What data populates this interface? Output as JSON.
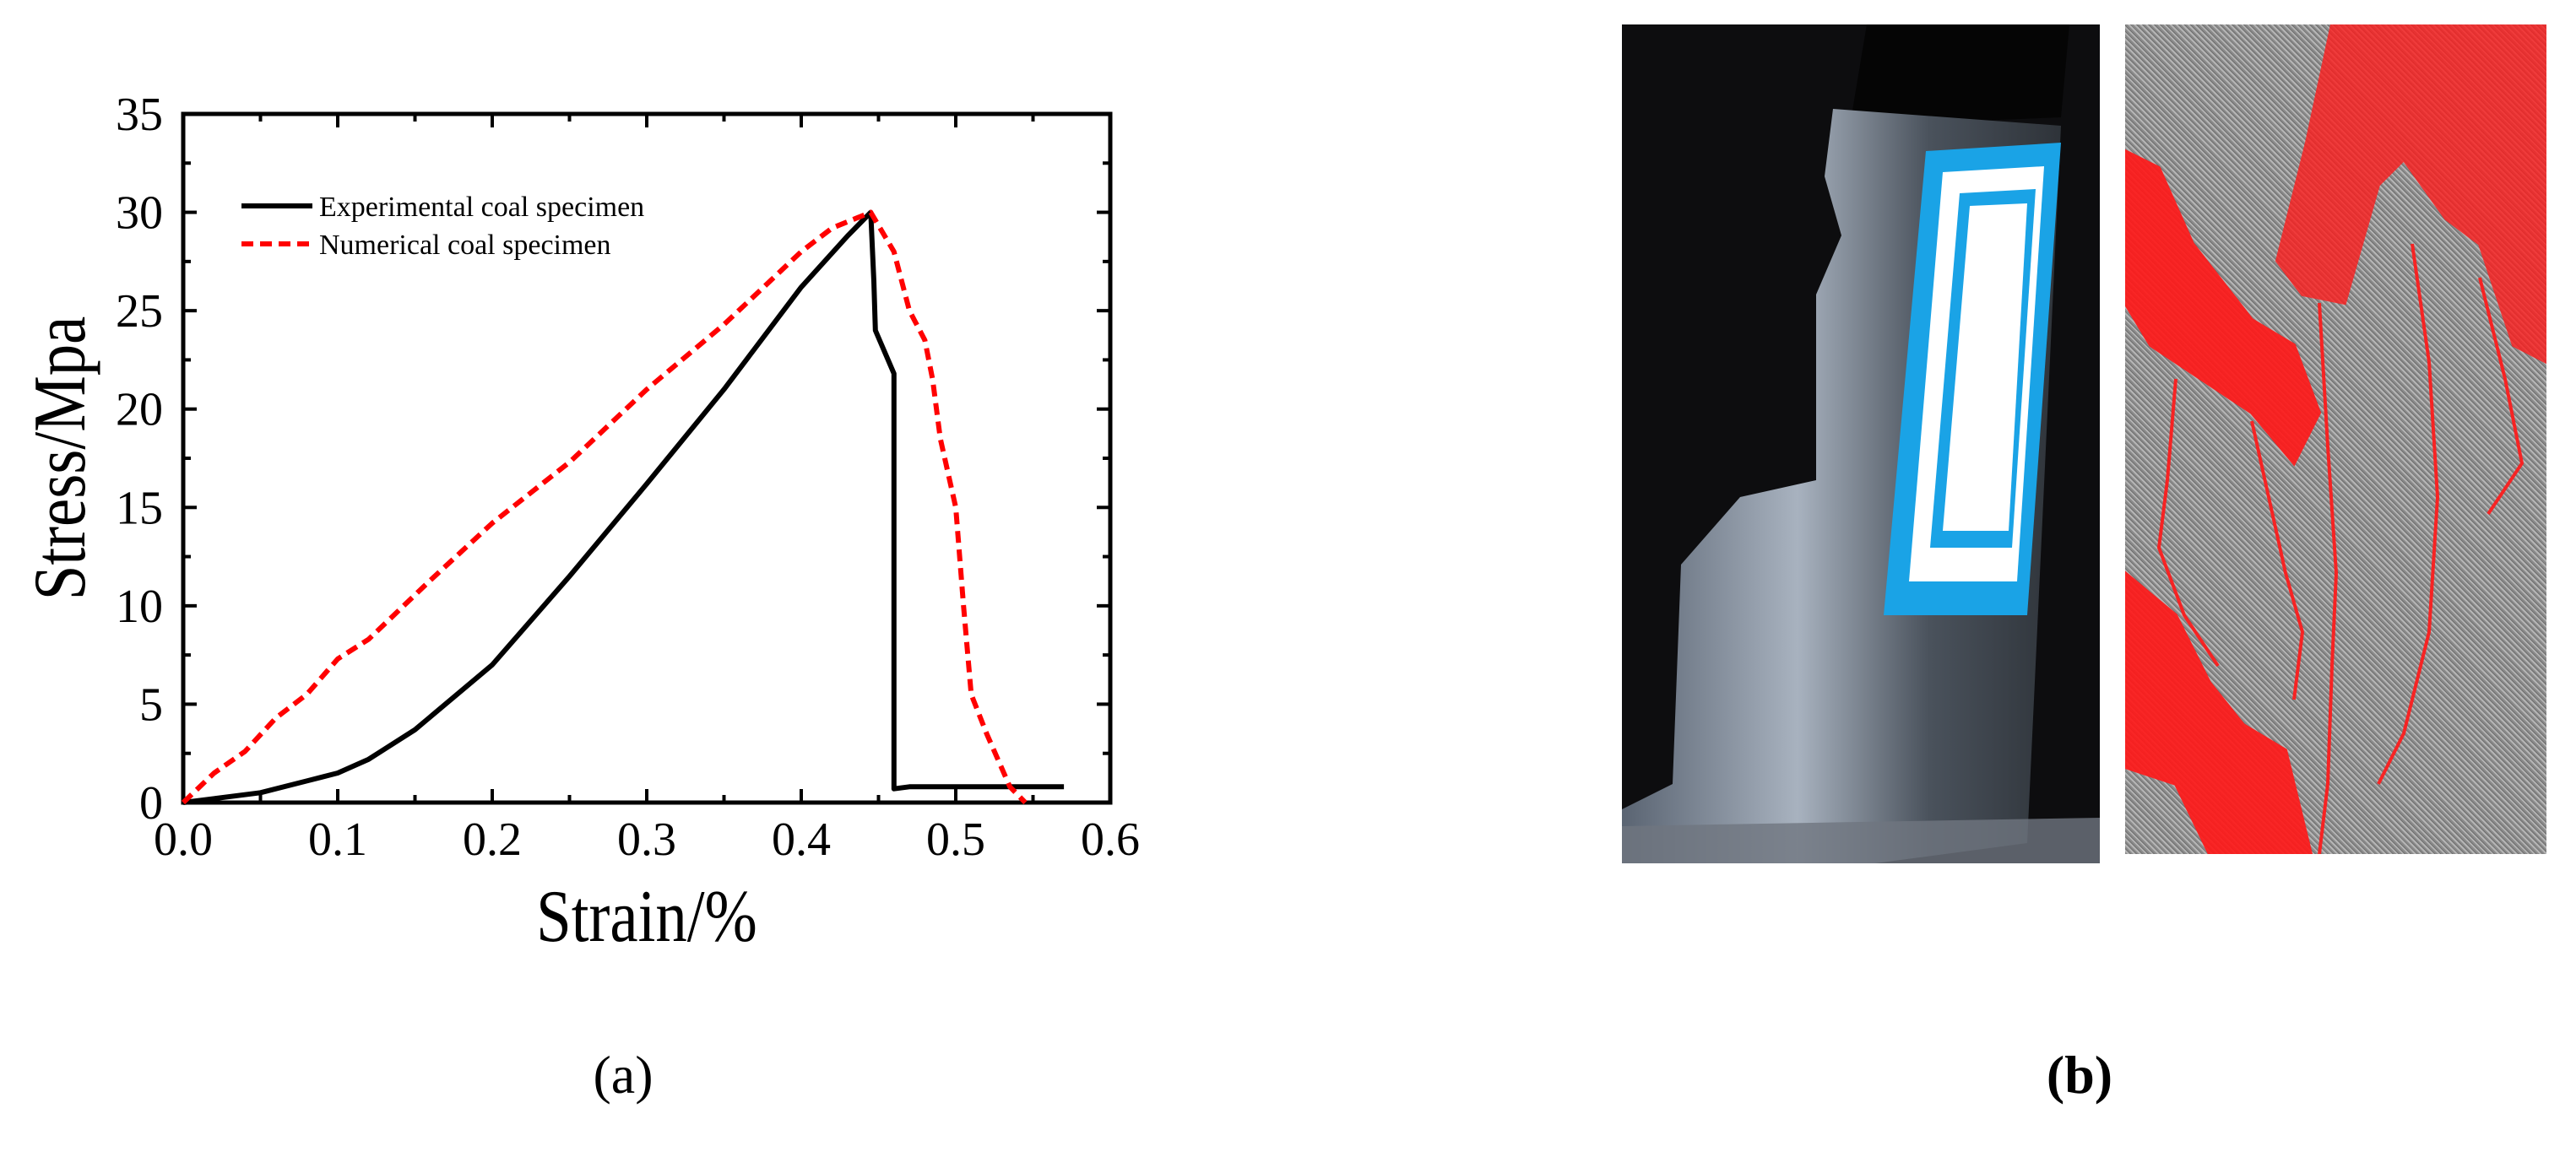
{
  "chart_data": {
    "type": "line",
    "xlabel": "Strain/%",
    "ylabel": "Stress/Mpa",
    "xlim": [
      0.0,
      0.6
    ],
    "ylim": [
      0,
      35
    ],
    "xticks": [
      "0.0",
      "0.1",
      "0.2",
      "0.3",
      "0.4",
      "0.5",
      "0.6"
    ],
    "yticks": [
      "0",
      "5",
      "10",
      "15",
      "20",
      "25",
      "30",
      "35"
    ],
    "legend_position": "top-left",
    "series": [
      {
        "name": "Experimental coal specimen",
        "color": "#000000",
        "style": "solid",
        "x": [
          0,
          0.02,
          0.05,
          0.08,
          0.1,
          0.12,
          0.15,
          0.2,
          0.25,
          0.3,
          0.35,
          0.4,
          0.43,
          0.445,
          0.447,
          0.448,
          0.46,
          0.46,
          0.47,
          0.57
        ],
        "y": [
          0,
          0.2,
          0.5,
          1.1,
          1.5,
          2.2,
          3.7,
          7.0,
          11.5,
          16.2,
          21.0,
          26.2,
          28.8,
          30.0,
          26.5,
          24.0,
          21.8,
          0.7,
          0.8,
          0.8
        ]
      },
      {
        "name": "Numerical coal specimen",
        "color": "#ff0000",
        "style": "dashed",
        "x": [
          0,
          0.02,
          0.04,
          0.06,
          0.08,
          0.1,
          0.12,
          0.14,
          0.16,
          0.2,
          0.25,
          0.3,
          0.35,
          0.4,
          0.42,
          0.445,
          0.46,
          0.47,
          0.48,
          0.485,
          0.49,
          0.5,
          0.505,
          0.51,
          0.52,
          0.535,
          0.545
        ],
        "y": [
          0,
          1.5,
          2.6,
          4.3,
          5.5,
          7.3,
          8.3,
          9.8,
          11.3,
          14.2,
          17.3,
          21.0,
          24.3,
          28.0,
          29.2,
          30.0,
          28.0,
          25.0,
          23.5,
          21.5,
          18.5,
          15.0,
          10.0,
          5.5,
          3.5,
          0.8,
          0
        ]
      }
    ]
  },
  "panels": {
    "a_label": "(a)",
    "b_label": "(b)"
  },
  "images": {
    "photo_label_color": "#1aa3e6",
    "crack_color": "#ff0000"
  }
}
